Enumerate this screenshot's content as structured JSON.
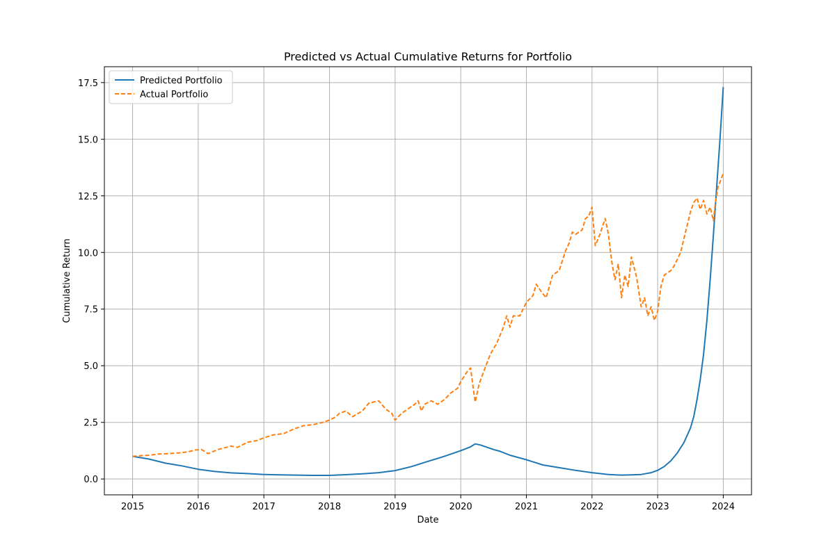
{
  "chart_data": {
    "type": "line",
    "title": "Predicted vs Actual Cumulative Returns for Portfolio",
    "xlabel": "Date",
    "ylabel": "Cumulative Return",
    "xlim": [
      2014.57,
      2024.43
    ],
    "ylim": [
      -0.7,
      18.2
    ],
    "xticks": [
      2015,
      2016,
      2017,
      2018,
      2019,
      2020,
      2021,
      2022,
      2023,
      2024
    ],
    "xtick_labels": [
      "2015",
      "2016",
      "2017",
      "2018",
      "2019",
      "2020",
      "2021",
      "2022",
      "2023",
      "2024"
    ],
    "yticks": [
      0,
      2.5,
      5,
      7.5,
      10,
      12.5,
      15,
      17.5
    ],
    "ytick_labels": [
      "0.0",
      "2.5",
      "5.0",
      "7.5",
      "10.0",
      "12.5",
      "15.0",
      "17.5"
    ],
    "grid": true,
    "legend_position": "top-left",
    "series": [
      {
        "name": "Predicted Portfolio",
        "color": "#1f77b4",
        "style": "solid",
        "x": [
          2015.0,
          2015.25,
          2015.5,
          2015.75,
          2016.0,
          2016.25,
          2016.5,
          2016.75,
          2017.0,
          2017.25,
          2017.5,
          2017.75,
          2018.0,
          2018.25,
          2018.5,
          2018.75,
          2019.0,
          2019.25,
          2019.5,
          2019.75,
          2020.0,
          2020.15,
          2020.22,
          2020.3,
          2020.4,
          2020.5,
          2020.6,
          2020.75,
          2021.0,
          2021.25,
          2021.5,
          2021.75,
          2022.0,
          2022.25,
          2022.45,
          2022.6,
          2022.75,
          2022.9,
          2023.0,
          2023.1,
          2023.2,
          2023.3,
          2023.4,
          2023.5,
          2023.55,
          2023.6,
          2023.65,
          2023.7,
          2023.75,
          2023.8,
          2023.85,
          2023.9,
          2023.95,
          2024.0
        ],
        "y": [
          1.0,
          0.88,
          0.7,
          0.58,
          0.43,
          0.33,
          0.27,
          0.24,
          0.2,
          0.18,
          0.17,
          0.16,
          0.16,
          0.19,
          0.23,
          0.28,
          0.37,
          0.55,
          0.78,
          1.0,
          1.25,
          1.42,
          1.55,
          1.5,
          1.4,
          1.3,
          1.22,
          1.05,
          0.85,
          0.62,
          0.5,
          0.38,
          0.28,
          0.2,
          0.17,
          0.18,
          0.2,
          0.28,
          0.38,
          0.55,
          0.8,
          1.15,
          1.6,
          2.25,
          2.75,
          3.5,
          4.4,
          5.5,
          7.0,
          8.8,
          10.8,
          12.9,
          15.0,
          17.3
        ]
      },
      {
        "name": "Actual Portfolio",
        "color": "#ff7f0e",
        "style": "dashed",
        "x": [
          2015.0,
          2015.1,
          2015.25,
          2015.4,
          2015.55,
          2015.7,
          2015.85,
          2015.95,
          2016.05,
          2016.15,
          2016.3,
          2016.5,
          2016.6,
          2016.75,
          2016.9,
          2017.0,
          2017.15,
          2017.3,
          2017.45,
          2017.6,
          2017.75,
          2017.9,
          2018.0,
          2018.1,
          2018.15,
          2018.25,
          2018.35,
          2018.5,
          2018.6,
          2018.75,
          2018.85,
          2018.95,
          2019.0,
          2019.1,
          2019.2,
          2019.3,
          2019.35,
          2019.4,
          2019.45,
          2019.55,
          2019.65,
          2019.75,
          2019.85,
          2019.95,
          2020.0,
          2020.1,
          2020.15,
          2020.2,
          2020.22,
          2020.28,
          2020.35,
          2020.45,
          2020.55,
          2020.65,
          2020.7,
          2020.75,
          2020.8,
          2020.9,
          2021.0,
          2021.1,
          2021.15,
          2021.22,
          2021.3,
          2021.4,
          2021.5,
          2021.6,
          2021.65,
          2021.7,
          2021.75,
          2021.85,
          2021.9,
          2021.95,
          2022.0,
          2022.05,
          2022.12,
          2022.2,
          2022.25,
          2022.3,
          2022.35,
          2022.4,
          2022.45,
          2022.5,
          2022.55,
          2022.6,
          2022.68,
          2022.75,
          2022.8,
          2022.85,
          2022.9,
          2022.95,
          2023.0,
          2023.05,
          2023.1,
          2023.2,
          2023.25,
          2023.35,
          2023.4,
          2023.45,
          2023.5,
          2023.55,
          2023.6,
          2023.65,
          2023.7,
          2023.75,
          2023.8,
          2023.85,
          2023.88,
          2023.92,
          2023.95,
          2024.0
        ],
        "y": [
          1.0,
          1.02,
          1.05,
          1.1,
          1.12,
          1.15,
          1.2,
          1.28,
          1.3,
          1.12,
          1.3,
          1.45,
          1.4,
          1.62,
          1.7,
          1.82,
          1.95,
          2.0,
          2.2,
          2.35,
          2.4,
          2.5,
          2.6,
          2.75,
          2.9,
          3.0,
          2.75,
          3.0,
          3.35,
          3.45,
          3.1,
          2.9,
          2.6,
          2.9,
          3.1,
          3.3,
          3.45,
          3.0,
          3.3,
          3.45,
          3.3,
          3.5,
          3.8,
          4.0,
          4.3,
          4.75,
          4.9,
          3.8,
          3.4,
          4.2,
          4.75,
          5.5,
          6.0,
          6.7,
          7.2,
          6.7,
          7.2,
          7.2,
          7.8,
          8.1,
          8.6,
          8.3,
          8.0,
          9.0,
          9.2,
          10.1,
          10.4,
          10.9,
          10.8,
          11.0,
          11.5,
          11.6,
          12.0,
          10.3,
          10.8,
          11.5,
          10.8,
          9.6,
          8.8,
          9.5,
          8.0,
          9.0,
          8.5,
          9.8,
          8.9,
          7.6,
          8.0,
          7.2,
          7.6,
          7.0,
          7.4,
          8.5,
          9.0,
          9.2,
          9.4,
          10.0,
          10.6,
          11.2,
          11.8,
          12.2,
          12.4,
          11.9,
          12.3,
          11.7,
          12.0,
          11.4,
          12.2,
          12.9,
          13.1,
          13.5
        ]
      }
    ]
  }
}
